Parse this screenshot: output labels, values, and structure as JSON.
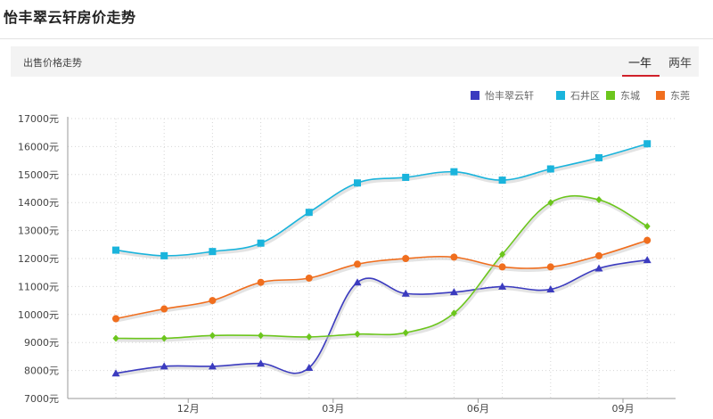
{
  "page": {
    "title": "怡丰翠云轩房价走势"
  },
  "subbar": {
    "label": "出售价格走势",
    "tabs": [
      "一年",
      "两年"
    ],
    "active_tab": "一年"
  },
  "chart_data": {
    "type": "line",
    "x": [
      0,
      1,
      2,
      3,
      4,
      5,
      6,
      7,
      8,
      9,
      10,
      11
    ],
    "xtick_labels": {
      "1": "12月",
      "4": "03月",
      "7": "06月",
      "10": "09月"
    },
    "ylim": [
      7000,
      17000
    ],
    "yticks": [
      7000,
      8000,
      9000,
      10000,
      11000,
      12000,
      13000,
      14000,
      15000,
      16000,
      17000
    ],
    "ytick_labels": [
      "7000元",
      "8000元",
      "9000元",
      "10000元",
      "11000元",
      "12000元",
      "13000元",
      "14000元",
      "15000元",
      "16000元",
      "17000元"
    ],
    "grid": true,
    "legend_position": "top-right",
    "series": [
      {
        "name": "怡丰翠云轩",
        "color": "#3b3bbf",
        "marker": "triangle",
        "values": [
          7900,
          8150,
          8150,
          8250,
          8100,
          11150,
          10750,
          10800,
          11000,
          10900,
          11650,
          11950
        ]
      },
      {
        "name": "石井区",
        "color": "#1ab4dc",
        "marker": "square",
        "values": [
          12300,
          12100,
          12250,
          12550,
          13650,
          14700,
          14900,
          15100,
          14800,
          15200,
          15600,
          16100
        ]
      },
      {
        "name": "东城",
        "color": "#6cc61d",
        "marker": "diamond",
        "values": [
          9150,
          9150,
          9250,
          9250,
          9200,
          9300,
          9350,
          10050,
          12150,
          14000,
          14100,
          13150
        ]
      },
      {
        "name": "东莞",
        "color": "#f06e1e",
        "marker": "circle",
        "values": [
          9850,
          10200,
          10500,
          11150,
          11300,
          11800,
          12000,
          12050,
          11700,
          11700,
          12100,
          12650
        ]
      }
    ]
  }
}
